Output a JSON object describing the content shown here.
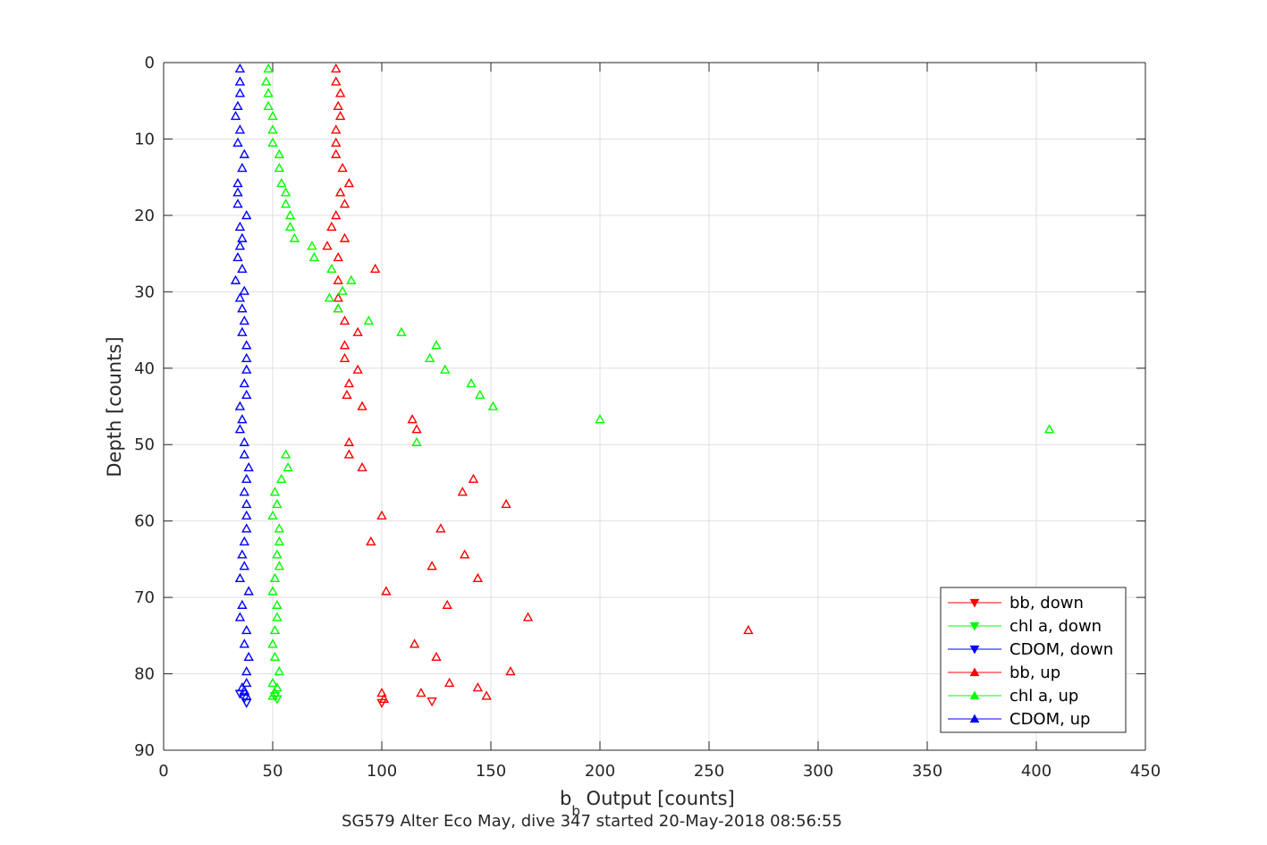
{
  "chart_data": {
    "type": "scatter",
    "title": "",
    "xlabel": "b",
    "xlabel_sub": "b",
    "xlabel_rest": " Output [counts]",
    "ylabel": "Depth [counts]",
    "caption": "SG579 Alter Eco May, dive 347 started 20-May-2018 08:56:55",
    "xlim": [
      0,
      450
    ],
    "ylim": [
      0,
      90
    ],
    "y_reversed": true,
    "grid": true,
    "legend_position": "bottom-right",
    "x_ticks": [
      0,
      50,
      100,
      150,
      200,
      250,
      300,
      350,
      400,
      450
    ],
    "y_ticks": [
      0,
      10,
      20,
      30,
      40,
      50,
      60,
      70,
      80,
      90
    ],
    "colors": {
      "red": "#ff0000",
      "green": "#00ff00",
      "blue": "#0000ff"
    },
    "series": [
      {
        "name": "bb, down",
        "color": "#ff0000",
        "marker": "triangle-down",
        "points": [
          [
            100,
            83.8
          ],
          [
            123,
            83.6
          ]
        ]
      },
      {
        "name": "chl a, down",
        "color": "#00ff00",
        "marker": "triangle-down",
        "points": [
          [
            51,
            82.9
          ],
          [
            52,
            83.3
          ]
        ]
      },
      {
        "name": "CDOM, down",
        "color": "#0000ff",
        "marker": "triangle-down",
        "points": [
          [
            35,
            82.6
          ],
          [
            37,
            83.2
          ],
          [
            38,
            83.8
          ]
        ]
      },
      {
        "name": "bb, up",
        "color": "#ff0000",
        "marker": "triangle-up",
        "points": [
          [
            79,
            0.8
          ],
          [
            79,
            2.5
          ],
          [
            81,
            4.0
          ],
          [
            80,
            5.7
          ],
          [
            81,
            7.0
          ],
          [
            79,
            8.8
          ],
          [
            79,
            10.5
          ],
          [
            79,
            12.0
          ],
          [
            82,
            13.8
          ],
          [
            85,
            15.8
          ],
          [
            81,
            17.0
          ],
          [
            83,
            18.5
          ],
          [
            79,
            20.0
          ],
          [
            77,
            21.5
          ],
          [
            83,
            23.0
          ],
          [
            75,
            24.0
          ],
          [
            80,
            25.5
          ],
          [
            97,
            27.0
          ],
          [
            80,
            28.5
          ],
          [
            80,
            30.8
          ],
          [
            80,
            32.2
          ],
          [
            83,
            33.8
          ],
          [
            89,
            35.3
          ],
          [
            83,
            37.0
          ],
          [
            83,
            38.7
          ],
          [
            89,
            40.2
          ],
          [
            85,
            42.0
          ],
          [
            84,
            43.5
          ],
          [
            91,
            45.0
          ],
          [
            114,
            46.7
          ],
          [
            116,
            48.0
          ],
          [
            85,
            49.7
          ],
          [
            85,
            51.3
          ],
          [
            91,
            53.0
          ],
          [
            142,
            54.5
          ],
          [
            137,
            56.2
          ],
          [
            157,
            57.8
          ],
          [
            100,
            59.3
          ],
          [
            127,
            61.0
          ],
          [
            95,
            62.7
          ],
          [
            138,
            64.4
          ],
          [
            123,
            65.9
          ],
          [
            144,
            67.5
          ],
          [
            102,
            69.2
          ],
          [
            130,
            71.0
          ],
          [
            167,
            72.6
          ],
          [
            268,
            74.3
          ],
          [
            115,
            76.1
          ],
          [
            125,
            77.8
          ],
          [
            159,
            79.7
          ],
          [
            131,
            81.2
          ],
          [
            100,
            82.5
          ],
          [
            118,
            82.5
          ],
          [
            144,
            81.8
          ],
          [
            148,
            82.9
          ],
          [
            101,
            83.3
          ]
        ]
      },
      {
        "name": "chl a, up",
        "color": "#00ff00",
        "marker": "triangle-up",
        "points": [
          [
            48,
            0.8
          ],
          [
            47,
            2.5
          ],
          [
            48,
            4.0
          ],
          [
            48,
            5.7
          ],
          [
            50,
            7.0
          ],
          [
            50,
            8.8
          ],
          [
            50,
            10.5
          ],
          [
            53,
            12.0
          ],
          [
            53,
            13.8
          ],
          [
            54,
            15.8
          ],
          [
            56,
            17.0
          ],
          [
            56,
            18.5
          ],
          [
            58,
            20.0
          ],
          [
            58,
            21.5
          ],
          [
            60,
            23.0
          ],
          [
            68,
            24.0
          ],
          [
            69,
            25.5
          ],
          [
            77,
            27.0
          ],
          [
            86,
            28.5
          ],
          [
            82,
            29.9
          ],
          [
            76,
            30.8
          ],
          [
            80,
            32.2
          ],
          [
            94,
            33.8
          ],
          [
            109,
            35.3
          ],
          [
            125,
            37.0
          ],
          [
            122,
            38.7
          ],
          [
            129,
            40.2
          ],
          [
            141,
            42.0
          ],
          [
            145,
            43.5
          ],
          [
            151,
            45.0
          ],
          [
            200,
            46.7
          ],
          [
            406,
            48.0
          ],
          [
            116,
            49.7
          ],
          [
            56,
            51.3
          ],
          [
            57,
            53.0
          ],
          [
            54,
            54.5
          ],
          [
            51,
            56.2
          ],
          [
            52,
            57.8
          ],
          [
            50,
            59.3
          ],
          [
            53,
            61.0
          ],
          [
            53,
            62.7
          ],
          [
            52,
            64.4
          ],
          [
            53,
            65.9
          ],
          [
            51,
            67.5
          ],
          [
            50,
            69.2
          ],
          [
            52,
            71.0
          ],
          [
            52,
            72.6
          ],
          [
            51,
            74.3
          ],
          [
            50,
            76.1
          ],
          [
            51,
            77.8
          ],
          [
            53,
            79.7
          ],
          [
            50,
            81.2
          ],
          [
            52,
            81.8
          ],
          [
            51,
            82.5
          ],
          [
            50,
            82.9
          ]
        ]
      },
      {
        "name": "CDOM, up",
        "color": "#0000ff",
        "marker": "triangle-up",
        "points": [
          [
            35,
            0.8
          ],
          [
            35,
            2.5
          ],
          [
            35,
            4.0
          ],
          [
            34,
            5.7
          ],
          [
            33,
            7.0
          ],
          [
            35,
            8.8
          ],
          [
            34,
            10.5
          ],
          [
            37,
            12.0
          ],
          [
            36,
            13.8
          ],
          [
            34,
            15.8
          ],
          [
            34,
            17.0
          ],
          [
            34,
            18.5
          ],
          [
            38,
            20.0
          ],
          [
            35,
            21.5
          ],
          [
            36,
            23.0
          ],
          [
            35,
            24.0
          ],
          [
            34,
            25.5
          ],
          [
            36,
            27.0
          ],
          [
            33,
            28.5
          ],
          [
            37,
            29.9
          ],
          [
            35,
            30.8
          ],
          [
            36,
            32.2
          ],
          [
            37,
            33.8
          ],
          [
            36,
            35.3
          ],
          [
            38,
            37.0
          ],
          [
            38,
            38.7
          ],
          [
            38,
            40.2
          ],
          [
            37,
            42.0
          ],
          [
            38,
            43.5
          ],
          [
            35,
            45.0
          ],
          [
            36,
            46.7
          ],
          [
            35,
            48.0
          ],
          [
            37,
            49.7
          ],
          [
            37,
            51.3
          ],
          [
            39,
            53.0
          ],
          [
            38,
            54.5
          ],
          [
            37,
            56.2
          ],
          [
            38,
            57.8
          ],
          [
            38,
            59.3
          ],
          [
            38,
            61.0
          ],
          [
            37,
            62.7
          ],
          [
            36,
            64.4
          ],
          [
            37,
            65.9
          ],
          [
            35,
            67.5
          ],
          [
            39,
            69.2
          ],
          [
            36,
            71.0
          ],
          [
            35,
            72.6
          ],
          [
            38,
            74.3
          ],
          [
            37,
            76.1
          ],
          [
            39,
            77.8
          ],
          [
            38,
            79.7
          ],
          [
            38,
            81.2
          ],
          [
            36,
            81.8
          ],
          [
            37,
            82.2
          ],
          [
            38,
            82.9
          ]
        ]
      }
    ]
  }
}
